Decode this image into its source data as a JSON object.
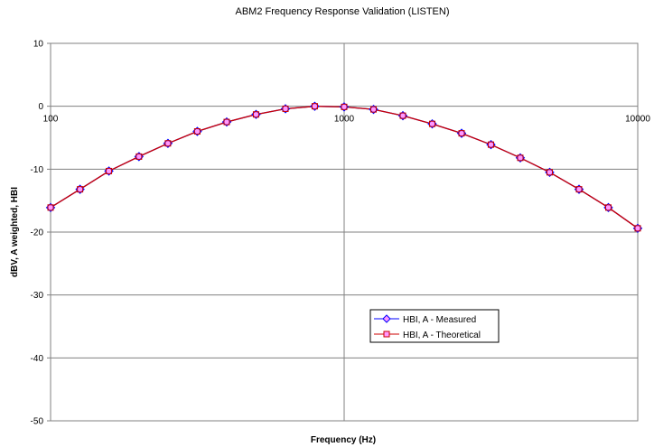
{
  "chart_data": {
    "type": "line",
    "title": "ABM2 Frequency Response Validation (LISTEN)",
    "xlabel": "Frequency (Hz)",
    "ylabel": "dBV, A weighted, HBI",
    "xscale": "log",
    "xlim": [
      100,
      10000
    ],
    "ylim": [
      -50,
      10
    ],
    "x_ticks": [
      100,
      1000,
      10000
    ],
    "y_ticks": [
      10,
      0,
      -10,
      -20,
      -30,
      -40,
      -50
    ],
    "x_tick_labels": [
      "100",
      "1000",
      "10000"
    ],
    "y_tick_labels": [
      "10",
      "0",
      "-10",
      "-20",
      "-30",
      "-40",
      "-50"
    ],
    "grid": true,
    "legend_position": "center-right",
    "x": [
      100,
      126,
      158,
      200,
      251,
      316,
      398,
      501,
      631,
      794,
      1000,
      1259,
      1585,
      1995,
      2512,
      3162,
      3981,
      5012,
      6310,
      7943,
      10000
    ],
    "series": [
      {
        "name": "HBI, A - Measured",
        "color": "#0000ff",
        "marker": "diamond",
        "values": [
          -16.1,
          -13.2,
          -10.3,
          -8.0,
          -5.9,
          -4.0,
          -2.5,
          -1.3,
          -0.4,
          0.0,
          -0.1,
          -0.5,
          -1.5,
          -2.8,
          -4.3,
          -6.1,
          -8.2,
          -10.5,
          -13.2,
          -16.1,
          -19.4
        ]
      },
      {
        "name": "HBI, A - Theoretical",
        "color": "#cc0000",
        "marker": "square",
        "values": [
          -16.1,
          -13.2,
          -10.3,
          -8.0,
          -5.9,
          -4.0,
          -2.5,
          -1.3,
          -0.4,
          0.0,
          -0.1,
          -0.5,
          -1.5,
          -2.8,
          -4.3,
          -6.1,
          -8.2,
          -10.5,
          -13.2,
          -16.1,
          -19.4
        ]
      }
    ]
  }
}
